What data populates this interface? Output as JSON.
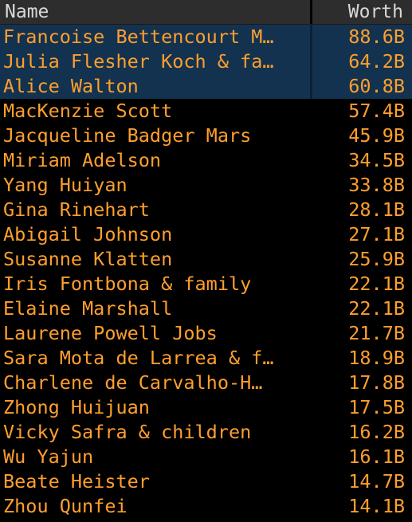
{
  "header": {
    "name_label": "Name",
    "worth_label": "Worth"
  },
  "colors": {
    "text": "#ff9f2e",
    "header_text": "#d8d8d8",
    "header_bg": "#2d2d2d",
    "selected_bg": "#13324f",
    "background": "#000000"
  },
  "rows": [
    {
      "name": "Francoise Bettencourt M…",
      "worth": "88.6B",
      "selected": true
    },
    {
      "name": "Julia Flesher Koch & fa…",
      "worth": "64.2B",
      "selected": true
    },
    {
      "name": "Alice Walton",
      "worth": "60.8B",
      "selected": true
    },
    {
      "name": "MacKenzie Scott",
      "worth": "57.4B",
      "selected": false
    },
    {
      "name": "Jacqueline Badger Mars",
      "worth": "45.9B",
      "selected": false
    },
    {
      "name": "Miriam Adelson",
      "worth": "34.5B",
      "selected": false
    },
    {
      "name": "Yang Huiyan",
      "worth": "33.8B",
      "selected": false
    },
    {
      "name": "Gina Rinehart",
      "worth": "28.1B",
      "selected": false
    },
    {
      "name": "Abigail Johnson",
      "worth": "27.1B",
      "selected": false
    },
    {
      "name": "Susanne Klatten",
      "worth": "25.9B",
      "selected": false
    },
    {
      "name": "Iris Fontbona & family",
      "worth": "22.1B",
      "selected": false
    },
    {
      "name": "Elaine Marshall",
      "worth": "22.1B",
      "selected": false
    },
    {
      "name": "Laurene Powell Jobs",
      "worth": "21.7B",
      "selected": false
    },
    {
      "name": "Sara Mota de Larrea & f…",
      "worth": "18.9B",
      "selected": false
    },
    {
      "name": "Charlene de Carvalho-H…",
      "worth": "17.8B",
      "selected": false
    },
    {
      "name": "Zhong Huijuan",
      "worth": "17.5B",
      "selected": false
    },
    {
      "name": "Vicky Safra & children",
      "worth": "16.2B",
      "selected": false
    },
    {
      "name": "Wu Yajun",
      "worth": "16.1B",
      "selected": false
    },
    {
      "name": "Beate Heister",
      "worth": "14.7B",
      "selected": false
    },
    {
      "name": "Zhou Qunfei",
      "worth": "14.1B",
      "selected": false
    }
  ]
}
